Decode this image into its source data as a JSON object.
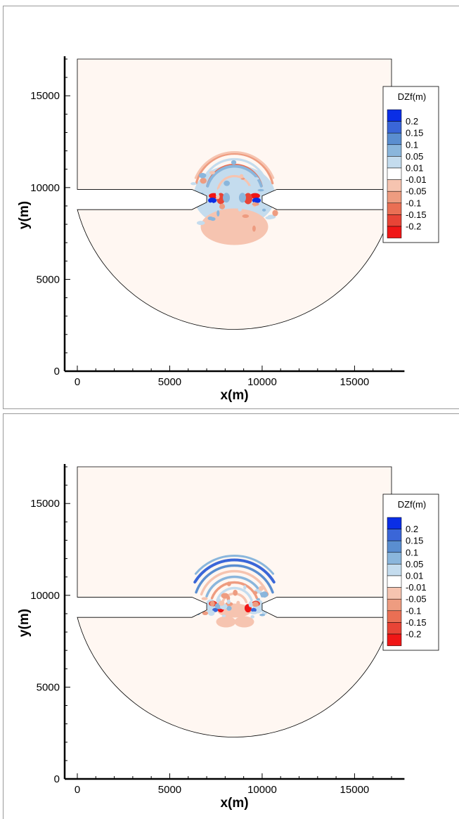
{
  "chart_data": [
    {
      "type": "heatmap",
      "title": "",
      "xlabel": "x(m)",
      "ylabel": "y(m)",
      "xlim": [
        -700,
        17700
      ],
      "ylim": [
        0,
        17000
      ],
      "xticks": [
        0,
        5000,
        10000,
        15000
      ],
      "yticks": [
        0,
        5000,
        10000,
        15000
      ],
      "legend": {
        "title": "DZf(m)",
        "placement": "right",
        "levels": [
          "0.2",
          "0.15",
          "0.1",
          "0.05",
          "0.01",
          "-0.01",
          "-0.05",
          "-0.1",
          "-0.15",
          "-0.2"
        ],
        "colors": [
          "#0a2ee6",
          "#3a66d8",
          "#5a8ed0",
          "#8ab6dc",
          "#c4dcee",
          "#ffffff",
          "#f6c4b0",
          "#ee9c80",
          "#ea6f54",
          "#e84436",
          "#f01616"
        ]
      },
      "domain_color": "#fff7f2",
      "pattern": "outward"
    },
    {
      "type": "heatmap",
      "title": "",
      "xlabel": "x(m)",
      "ylabel": "y(m)",
      "xlim": [
        -700,
        17700
      ],
      "ylim": [
        0,
        17000
      ],
      "xticks": [
        0,
        5000,
        10000,
        15000
      ],
      "yticks": [
        0,
        5000,
        10000,
        15000
      ],
      "legend": {
        "title": "DZf(m)",
        "placement": "right",
        "levels": [
          "0.2",
          "0.15",
          "0.1",
          "0.05",
          "0.01",
          "-0.01",
          "-0.05",
          "-0.1",
          "-0.15",
          "-0.2"
        ],
        "colors": [
          "#0a2ee6",
          "#3a66d8",
          "#5a8ed0",
          "#8ab6dc",
          "#c4dcee",
          "#ffffff",
          "#f6c4b0",
          "#ee9c80",
          "#ea6f54",
          "#e84436",
          "#f01616"
        ]
      },
      "domain_color": "#fff7f2",
      "pattern": "northward"
    }
  ]
}
